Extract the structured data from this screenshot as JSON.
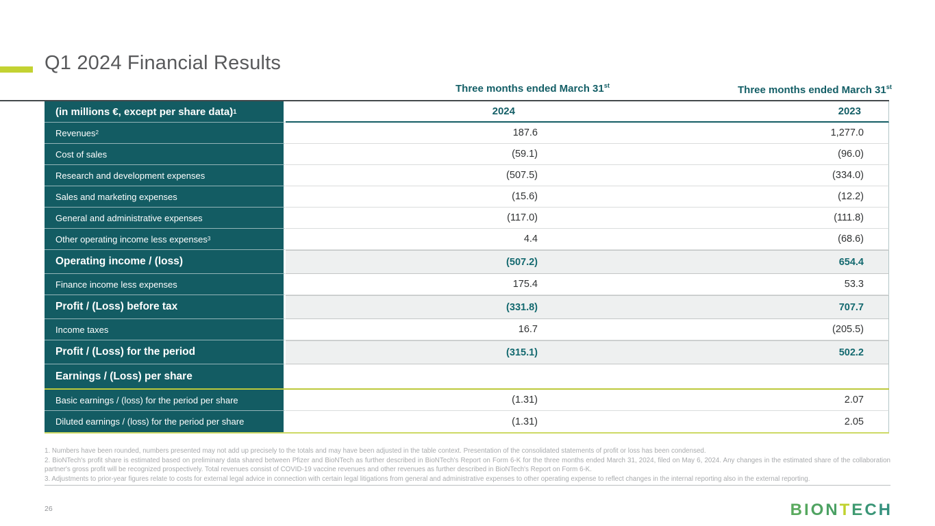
{
  "slide": {
    "title": "Q1 2024 Financial Results",
    "page_number": "26",
    "logo_text": "BIONTECH"
  },
  "table": {
    "period_2024": {
      "text": "Three months ended March 31",
      "sup": "st"
    },
    "period_2023": {
      "text": "Three months ended March 31",
      "sup": "st"
    },
    "header": {
      "label": "(in millions €, except per share data)",
      "label_sup": "1",
      "col_2024": "2024",
      "col_2023": "2023"
    },
    "rows": [
      {
        "label": "Revenues",
        "sup": "2",
        "v2024": "187.6",
        "v2023": "1,277.0",
        "style": "regular"
      },
      {
        "label": "Cost of sales",
        "sup": "",
        "v2024": "(59.1)",
        "v2023": "(96.0)",
        "style": "regular"
      },
      {
        "label": "Research and development expenses",
        "sup": "",
        "v2024": "(507.5)",
        "v2023": "(334.0)",
        "style": "regular"
      },
      {
        "label": "Sales and marketing expenses",
        "sup": "",
        "v2024": "(15.6)",
        "v2023": "(12.2)",
        "style": "regular"
      },
      {
        "label": "General and administrative expenses",
        "sup": "",
        "v2024": "(117.0)",
        "v2023": "(111.8)",
        "style": "regular"
      },
      {
        "label": "Other operating income less expenses",
        "sup": "3",
        "v2024": "4.4",
        "v2023": "(68.6)",
        "style": "regular"
      },
      {
        "label": "Operating income / (loss)",
        "sup": "",
        "v2024": "(507.2)",
        "v2023": "654.4",
        "style": "section"
      },
      {
        "label": "Finance income less expenses",
        "sup": "",
        "v2024": "175.4",
        "v2023": "53.3",
        "style": "regular"
      },
      {
        "label": "Profit / (Loss) before tax",
        "sup": "",
        "v2024": "(331.8)",
        "v2023": "707.7",
        "style": "section"
      },
      {
        "label": "Income taxes",
        "sup": "",
        "v2024": "16.7",
        "v2023": "(205.5)",
        "style": "regular"
      },
      {
        "label": "Profit / (Loss) for the period",
        "sup": "",
        "v2024": "(315.1)",
        "v2023": "502.2",
        "style": "section"
      },
      {
        "label": "Earnings / (Loss) per share",
        "sup": "",
        "v2024": "",
        "v2023": "",
        "style": "eps"
      },
      {
        "label": "Basic earnings / (loss) for the period per share",
        "sup": "",
        "v2024": "(1.31)",
        "v2023": "2.07",
        "style": "regular"
      },
      {
        "label": "Diluted earnings / (loss) for the period per share",
        "sup": "",
        "v2024": "(1.31)",
        "v2023": "2.05",
        "style": "regular last"
      }
    ]
  },
  "footnotes": [
    "1. Numbers have been rounded, numbers presented may not add up precisely to the totals and may have been adjusted in the table context. Presentation of the consolidated statements of profit or loss has been condensed.",
    "2. BioNTech's profit share is estimated based on preliminary data shared between Pfizer and BioNTech as further described in BioNTech's Report on Form 6-K for the three months ended March 31, 2024, filed on May 6, 2024. Any changes in the estimated share of the collaboration partner's gross profit will be recognized prospectively. Total revenues consist of COVID-19 vaccine revenues and other revenues as further described in BioNTech's Report on Form 6-K.",
    "3. Adjustments to prior-year figures relate to costs for external legal advice in connection with certain legal litigations from general and administrative expenses to other operating expense to reflect changes in the internal reporting also in the external reporting."
  ],
  "colors": {
    "teal": "#135c63",
    "teal_text": "#135e66",
    "lime_accent": "#c3d232",
    "lime_rule": "#bcc93c",
    "section_bg": "#eef0f0",
    "title_gray": "#58595b",
    "footnote_gray": "#a8aaac",
    "logo_letters": [
      "#5aaa5e",
      "#55a75f",
      "#50a361",
      "#4aa063",
      "#c0d22f",
      "#3f9a70",
      "#3a9577",
      "#35917e"
    ]
  }
}
